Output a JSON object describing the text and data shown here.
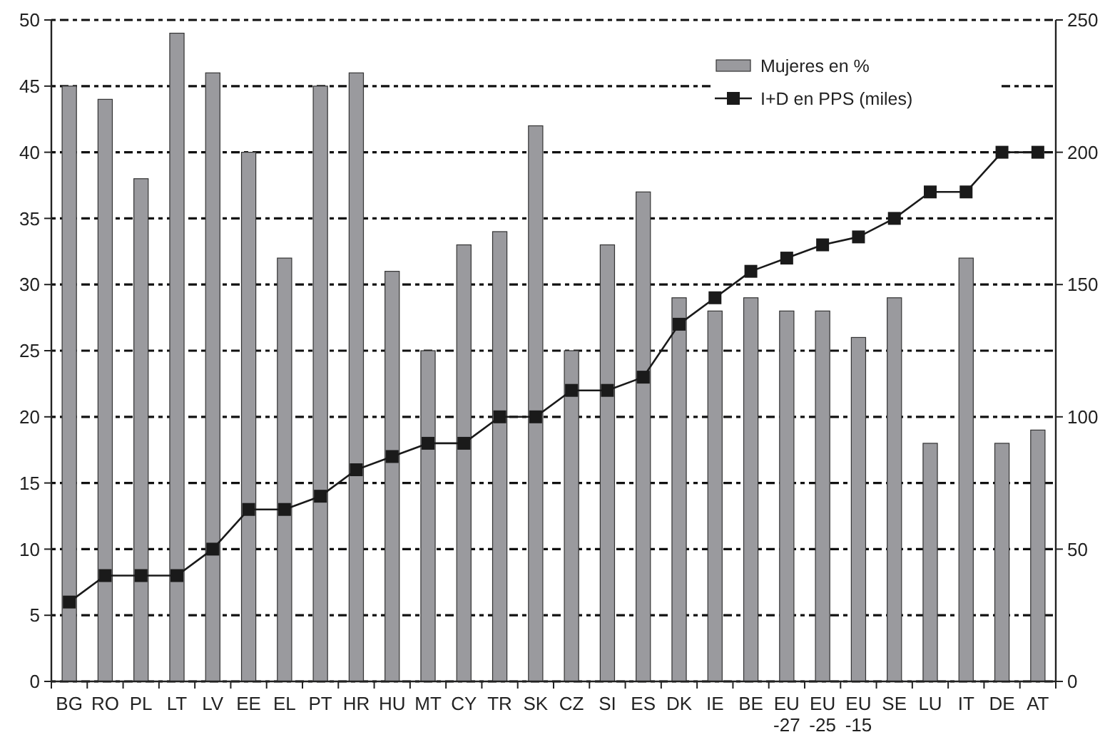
{
  "chart_data": {
    "type": "bar",
    "categories": [
      "BG",
      "RO",
      "PL",
      "LT",
      "LV",
      "EE",
      "EL",
      "PT",
      "HR",
      "HU",
      "MT",
      "CY",
      "TR",
      "SK",
      "CZ",
      "SI",
      "ES",
      "DK",
      "IE",
      "BE",
      "EU\n-27",
      "EU\n-25",
      "EU\n-15",
      "SE",
      "LU",
      "IT",
      "DE",
      "AT"
    ],
    "series": [
      {
        "name": "Mujeres en %",
        "color": "#9a9a9e",
        "values": [
          45,
          44,
          38,
          49,
          46,
          40,
          32,
          45,
          46,
          31,
          25,
          33,
          34,
          42,
          25,
          33,
          37,
          29,
          28,
          29,
          28,
          28,
          26,
          29,
          18,
          32,
          18,
          19
        ]
      },
      {
        "name": "I+D en PPS (miles)",
        "type": "line",
        "axis": "y2",
        "color": "#1a1a1a",
        "values": [
          30,
          40,
          40,
          40,
          50,
          65,
          65,
          70,
          80,
          85,
          90,
          90,
          100,
          100,
          110,
          110,
          115,
          135,
          145,
          155,
          160,
          165,
          168,
          175,
          185,
          185,
          200,
          200
        ]
      }
    ],
    "ylim": [
      0,
      50
    ],
    "yticks": [
      0,
      5,
      10,
      15,
      20,
      25,
      30,
      35,
      40,
      45,
      50
    ],
    "y2lim": [
      0,
      250
    ],
    "y2ticks": [
      0,
      50,
      100,
      150,
      200,
      250
    ],
    "grid": "y",
    "legend": "top right",
    "marker": "square",
    "line_style": "solid"
  }
}
